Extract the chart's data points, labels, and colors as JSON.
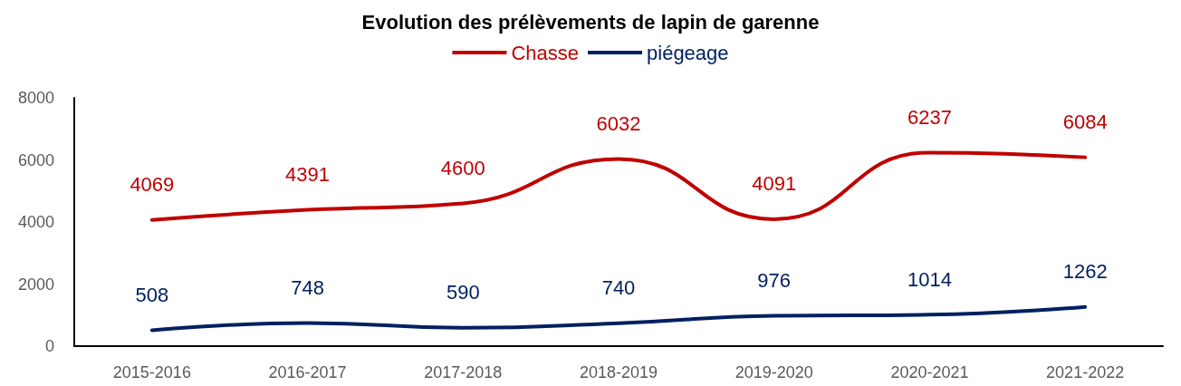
{
  "chart_data": {
    "type": "line",
    "title": "Evolution des prélèvements de lapin de garenne",
    "categories": [
      "2015-2016",
      "2016-2017",
      "2017-2018",
      "2018-2019",
      "2019-2020",
      "2020-2021",
      "2021-2022"
    ],
    "series": [
      {
        "name": "Chasse",
        "color": "#c00000",
        "values": [
          4069,
          4391,
          4600,
          6032,
          4091,
          6237,
          6084
        ]
      },
      {
        "name": "piégeage",
        "color": "#002060",
        "values": [
          508,
          748,
          590,
          740,
          976,
          1014,
          1262
        ]
      }
    ],
    "ylim": [
      0,
      8000
    ],
    "yticks": [
      0,
      2000,
      4000,
      6000,
      8000
    ],
    "grid": false,
    "legend": "top",
    "marker": "none",
    "line_style": "solid",
    "data_labels": true
  }
}
